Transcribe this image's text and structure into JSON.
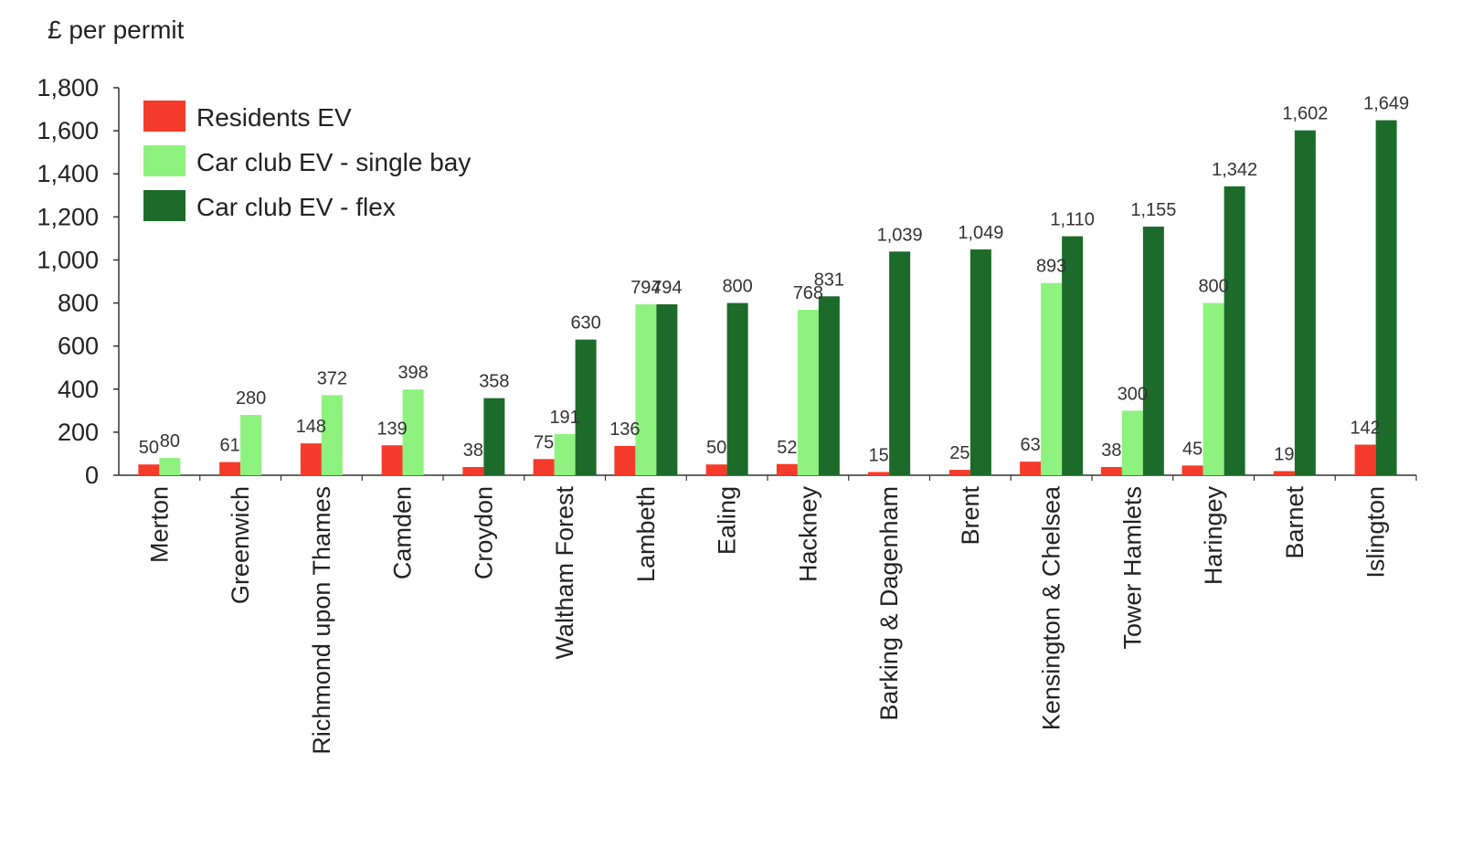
{
  "chart_data": {
    "type": "bar",
    "ylabel": "£ per permit",
    "ylim": [
      0,
      1800
    ],
    "yticks": [
      0,
      200,
      400,
      600,
      800,
      1000,
      1200,
      1400,
      1600,
      1800
    ],
    "ytick_labels": [
      "0",
      "200",
      "400",
      "600",
      "800",
      "1,000",
      "1,200",
      "1,400",
      "1,600",
      "1,800"
    ],
    "legend_position": "top-left",
    "grid": false,
    "categories": [
      "Merton",
      "Greenwich",
      "Richmond upon Thames",
      "Camden",
      "Croydon",
      "Waltham Forest",
      "Lambeth",
      "Ealing",
      "Hackney",
      "Barking & Dagenham",
      "Brent",
      "Kensington & Chelsea",
      "Tower Hamlets",
      "Haringey",
      "Barnet",
      "Islington"
    ],
    "series": [
      {
        "name": "Residents EV",
        "color": "#f53b2a",
        "values": [
          50,
          61,
          148,
          139,
          38,
          75,
          136,
          50,
          52,
          15,
          25,
          63,
          38,
          45,
          19,
          142
        ],
        "labels": [
          "50",
          "61",
          "148",
          "139",
          "38",
          "75",
          "136",
          "50",
          "52",
          "15",
          "25",
          "63",
          "38",
          "45",
          "19",
          "142"
        ]
      },
      {
        "name": "Car club EV - single bay",
        "color": "#8ef27e",
        "values": [
          80,
          280,
          372,
          398,
          null,
          191,
          794,
          null,
          768,
          null,
          null,
          893,
          300,
          800,
          null,
          null
        ],
        "labels": [
          "80",
          "280",
          "372",
          "398",
          null,
          "191",
          "794",
          null,
          "768",
          null,
          null,
          "893",
          "300",
          "800",
          null,
          null
        ]
      },
      {
        "name": "Car club EV - flex",
        "color": "#1d6b2a",
        "values": [
          null,
          null,
          null,
          null,
          358,
          630,
          794,
          800,
          831,
          1039,
          1049,
          1110,
          1155,
          1342,
          1602,
          1649
        ],
        "labels": [
          null,
          null,
          null,
          null,
          "358",
          "630",
          "794",
          "800",
          "831",
          "1,039",
          "1,049",
          "1,110",
          "1,155",
          "1,342",
          "1,602",
          "1,649"
        ]
      }
    ]
  }
}
